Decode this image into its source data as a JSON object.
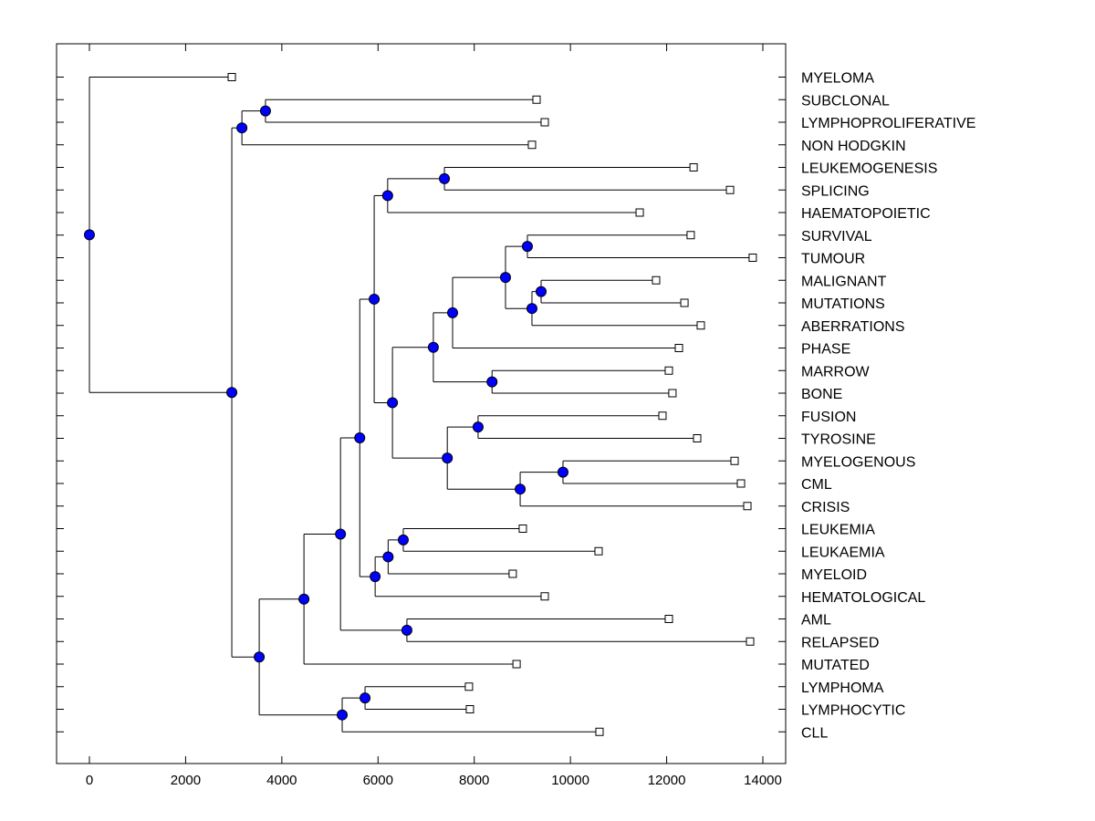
{
  "chart_data": {
    "type": "dendrogram",
    "title": "",
    "xlabel": "",
    "ylabel": "",
    "xlim": [
      -700,
      14500
    ],
    "xticks": [
      0,
      2000,
      4000,
      6000,
      8000,
      10000,
      12000,
      14000
    ],
    "xtick_labels": [
      "0",
      "2000",
      "4000",
      "6000",
      "8000",
      "10000",
      "12000",
      "14000"
    ],
    "grid": false,
    "leaf_label_position": "right",
    "colors": {
      "node_fill": "#0000ff",
      "leaf_fill": "#ffffff",
      "line": "#000000"
    },
    "leaves": [
      {
        "id": "MYELOMA",
        "label": "MYELOMA",
        "x": 2960
      },
      {
        "id": "SUBCLONAL",
        "label": "SUBCLONAL",
        "x": 9295
      },
      {
        "id": "LYMPHOPROLIFERATIVE",
        "label": "LYMPHOPROLIFERATIVE",
        "x": 9466
      },
      {
        "id": "NON_HODGKIN",
        "label": "NON HODGKIN",
        "x": 9200
      },
      {
        "id": "LEUKEMOGENESIS",
        "label": "LEUKEMOGENESIS",
        "x": 12560
      },
      {
        "id": "SPLICING",
        "label": "SPLICING",
        "x": 13318
      },
      {
        "id": "HAEMATOPOIETIC",
        "label": "HAEMATOPOIETIC",
        "x": 11440
      },
      {
        "id": "SURVIVAL",
        "label": "SURVIVAL",
        "x": 12500
      },
      {
        "id": "TUMOUR",
        "label": "TUMOUR",
        "x": 13790
      },
      {
        "id": "MALIGNANT",
        "label": "MALIGNANT",
        "x": 11780
      },
      {
        "id": "MUTATIONS",
        "label": "MUTATIONS",
        "x": 12370
      },
      {
        "id": "ABERRATIONS",
        "label": "ABERRATIONS",
        "x": 12710
      },
      {
        "id": "PHASE",
        "label": "PHASE",
        "x": 12255
      },
      {
        "id": "MARROW",
        "label": "MARROW",
        "x": 12046
      },
      {
        "id": "BONE",
        "label": "BONE",
        "x": 12120
      },
      {
        "id": "FUSION",
        "label": "FUSION",
        "x": 11913
      },
      {
        "id": "TYROSINE",
        "label": "TYROSINE",
        "x": 12634
      },
      {
        "id": "MYELOGENOUS",
        "label": "MYELOGENOUS",
        "x": 13412
      },
      {
        "id": "CML",
        "label": "CML",
        "x": 13545
      },
      {
        "id": "CRISIS",
        "label": "CRISIS",
        "x": 13678
      },
      {
        "id": "LEUKEMIA",
        "label": "LEUKEMIA",
        "x": 9010
      },
      {
        "id": "LEUKAEMIA",
        "label": "LEUKAEMIA",
        "x": 10585
      },
      {
        "id": "MYELOID",
        "label": "MYELOID",
        "x": 8800
      },
      {
        "id": "HEMATOLOGICAL",
        "label": "HEMATOLOGICAL",
        "x": 9466
      },
      {
        "id": "AML",
        "label": "AML",
        "x": 12046
      },
      {
        "id": "RELAPSED",
        "label": "RELAPSED",
        "x": 13735
      },
      {
        "id": "MUTATED",
        "label": "MUTATED",
        "x": 8880
      },
      {
        "id": "LYMPHOMA",
        "label": "LYMPHOMA",
        "x": 7890
      },
      {
        "id": "LYMPHOCYTIC",
        "label": "LYMPHOCYTIC",
        "x": 7910
      },
      {
        "id": "CLL",
        "label": "CLL",
        "x": 10604
      }
    ],
    "nodes": [
      {
        "id": "n_sub_lym",
        "x": 3660,
        "children": [
          "SUBCLONAL",
          "LYMPHOPROLIFERATIVE"
        ]
      },
      {
        "id": "n_top3",
        "x": 3170,
        "children": [
          "n_sub_lym",
          "NON_HODGKIN"
        ]
      },
      {
        "id": "n_leu_spl",
        "x": 7380,
        "children": [
          "LEUKEMOGENESIS",
          "SPLICING"
        ]
      },
      {
        "id": "n_haem",
        "x": 6200,
        "children": [
          "n_leu_spl",
          "HAEMATOPOIETIC"
        ]
      },
      {
        "id": "n_surv_tum",
        "x": 9105,
        "children": [
          "SURVIVAL",
          "TUMOUR"
        ]
      },
      {
        "id": "n_mal_mut",
        "x": 9390,
        "children": [
          "MALIGNANT",
          "MUTATIONS"
        ]
      },
      {
        "id": "n_aber",
        "x": 9200,
        "children": [
          "n_mal_mut",
          "ABERRATIONS"
        ]
      },
      {
        "id": "n_st_ab",
        "x": 8650,
        "children": [
          "n_surv_tum",
          "n_aber"
        ]
      },
      {
        "id": "n_phase",
        "x": 7550,
        "children": [
          "n_st_ab",
          "PHASE"
        ]
      },
      {
        "id": "n_mar_bone",
        "x": 8370,
        "children": [
          "MARROW",
          "BONE"
        ]
      },
      {
        "id": "n_ph_mb",
        "x": 7150,
        "children": [
          "n_phase",
          "n_mar_bone"
        ]
      },
      {
        "id": "n_fus_tyr",
        "x": 8080,
        "children": [
          "FUSION",
          "TYROSINE"
        ]
      },
      {
        "id": "n_mye_cml",
        "x": 9845,
        "children": [
          "MYELOGENOUS",
          "CML"
        ]
      },
      {
        "id": "n_crisis",
        "x": 8955,
        "children": [
          "n_mye_cml",
          "CRISIS"
        ]
      },
      {
        "id": "n_ft_cr",
        "x": 7440,
        "children": [
          "n_fus_tyr",
          "n_crisis"
        ]
      },
      {
        "id": "n_mid",
        "x": 6300,
        "children": [
          "n_ph_mb",
          "n_ft_cr"
        ]
      },
      {
        "id": "n_upper",
        "x": 5920,
        "children": [
          "n_haem",
          "n_mid"
        ]
      },
      {
        "id": "n_leuk",
        "x": 6525,
        "children": [
          "LEUKEMIA",
          "LEUKAEMIA"
        ]
      },
      {
        "id": "n_myeloid",
        "x": 6210,
        "children": [
          "n_leuk",
          "MYELOID"
        ]
      },
      {
        "id": "n_hemat",
        "x": 5940,
        "children": [
          "n_myeloid",
          "HEMATOLOGICAL"
        ]
      },
      {
        "id": "n_big",
        "x": 5620,
        "children": [
          "n_upper",
          "n_hemat"
        ]
      },
      {
        "id": "n_aml_rel",
        "x": 6600,
        "children": [
          "AML",
          "RELAPSED"
        ]
      },
      {
        "id": "n_big2",
        "x": 5220,
        "children": [
          "n_big",
          "n_aml_rel"
        ]
      },
      {
        "id": "n_mutated",
        "x": 4460,
        "children": [
          "n_big2",
          "MUTATED"
        ]
      },
      {
        "id": "n_lym",
        "x": 5730,
        "children": [
          "LYMPHOMA",
          "LYMPHOCYTIC"
        ]
      },
      {
        "id": "n_cll",
        "x": 5255,
        "children": [
          "n_lym",
          "CLL"
        ]
      },
      {
        "id": "n_low",
        "x": 3530,
        "children": [
          "n_mutated",
          "n_cll"
        ]
      },
      {
        "id": "n_main",
        "x": 2960,
        "children": [
          "n_top3",
          "n_low"
        ]
      },
      {
        "id": "root",
        "x": 0,
        "children": [
          "MYELOMA",
          "n_main"
        ]
      }
    ]
  }
}
